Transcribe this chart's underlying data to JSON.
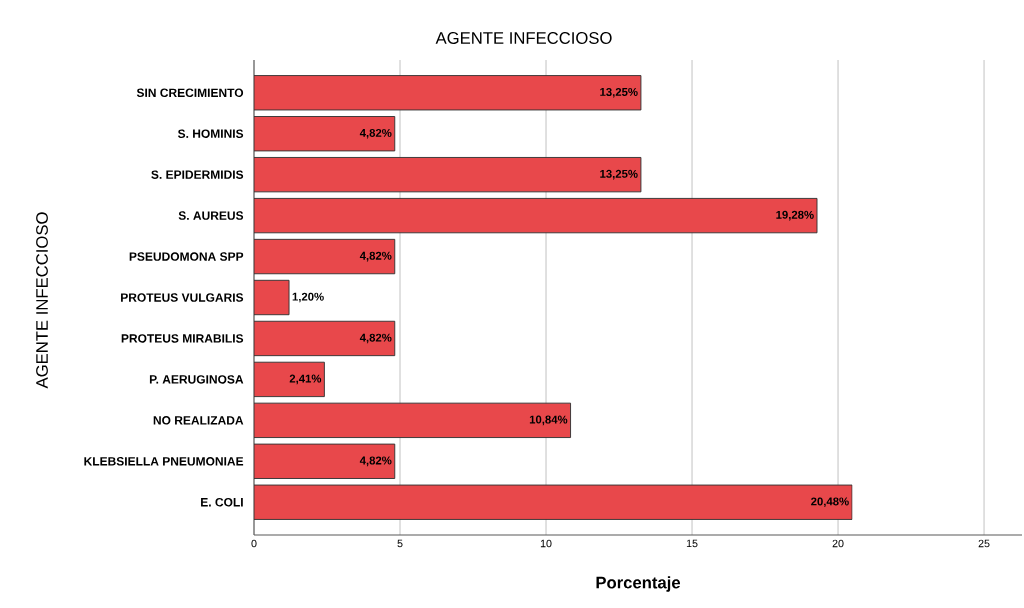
{
  "chart_data": {
    "type": "bar",
    "orientation": "horizontal",
    "title": "AGENTE INFECCIOSO",
    "xlabel": "Porcentaje",
    "ylabel": "AGENTE INFECCIOSO",
    "categories": [
      "SIN CRECIMIENTO",
      "S. HOMINIS",
      "S. EPIDERMIDIS",
      "S. AUREUS",
      "PSEUDOMONA SPP",
      "PROTEUS VULGARIS",
      "PROTEUS MIRABILIS",
      "P. AERUGINOSA",
      "NO REALIZADA",
      "KLEBSIELLA PNEUMONIAE",
      "E. COLI"
    ],
    "values": [
      13.25,
      4.82,
      13.25,
      19.28,
      4.82,
      1.2,
      4.82,
      2.41,
      10.84,
      4.82,
      20.48
    ],
    "value_labels": [
      "13,25%",
      "4,82%",
      "13,25%",
      "19,28%",
      "4,82%",
      "1,20%",
      "4,82%",
      "2,41%",
      "10,84%",
      "4,82%",
      "20,48%"
    ],
    "color": "#e8484b",
    "xlim": [
      0,
      26.3
    ],
    "xticks": [
      0,
      5,
      10,
      15,
      20,
      25
    ],
    "grid": "x"
  }
}
